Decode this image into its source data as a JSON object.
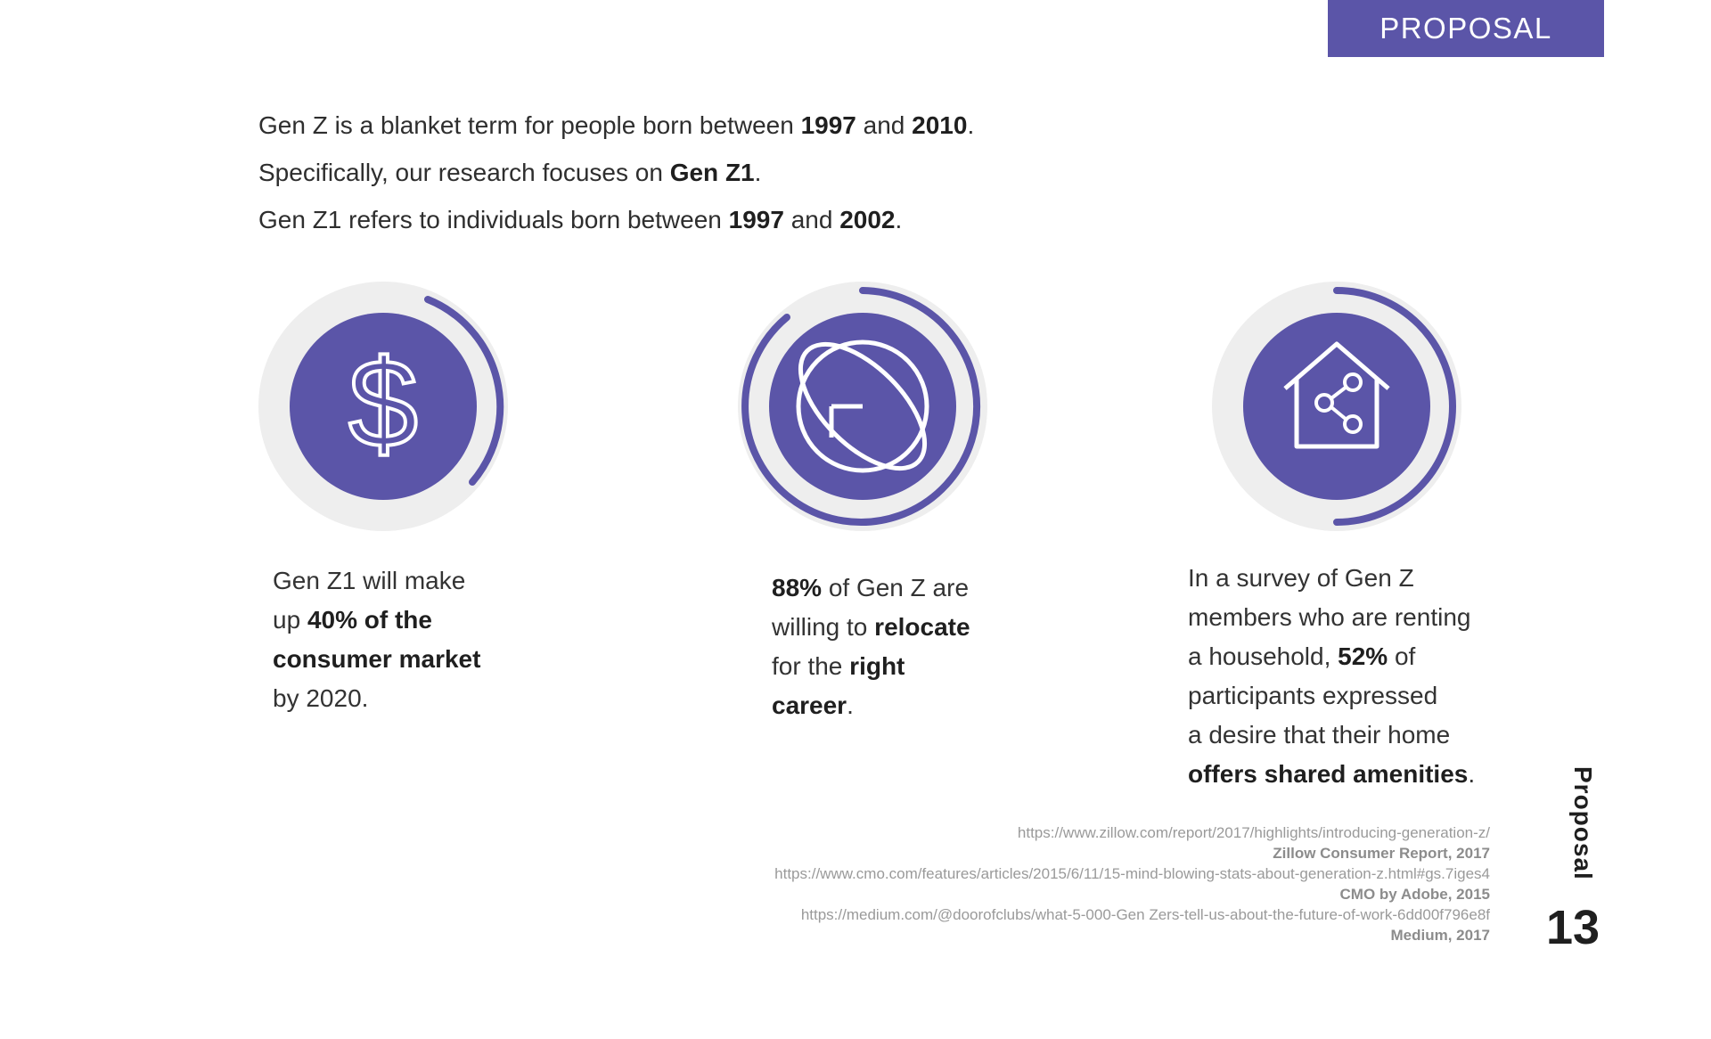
{
  "header": {
    "banner": "PROPOSAL"
  },
  "intro": {
    "line1": {
      "a": "Gen Z is a blanket term for people born between ",
      "b": "1997",
      "c": " and ",
      "d": "2010",
      "e": "."
    },
    "line2": {
      "a": "Specifically, our research focuses on ",
      "b": "Gen Z1",
      "c": "."
    },
    "line3": {
      "a": "Gen Z1 refers to individuals born between ",
      "b": "1997",
      "c": " and ",
      "d": "2002",
      "e": "."
    }
  },
  "stats": [
    {
      "icon": "dollar-icon",
      "lines": [
        {
          "a": "Gen Z1 will make"
        },
        {
          "a": "up ",
          "b": "40% of the"
        },
        {
          "b": "consumer market"
        },
        {
          "a": "by 2020."
        }
      ]
    },
    {
      "icon": "globe-arrow-icon",
      "lines": [
        {
          "b": "88%",
          "a": " of Gen Z are"
        },
        {
          "a": "willing to ",
          "b": "relocate"
        },
        {
          "a": "for the ",
          "b": "right"
        },
        {
          "b": "career",
          "a": "."
        }
      ]
    },
    {
      "icon": "house-share-icon",
      "lines": [
        {
          "a": "In a survey of Gen Z"
        },
        {
          "a": "members who are renting"
        },
        {
          "a": "a household, ",
          "b": "52%",
          "c": " of"
        },
        {
          "a": "participants expressed"
        },
        {
          "a": "a desire that their home"
        },
        {
          "b": "offers shared amenities",
          "a": "."
        }
      ]
    }
  ],
  "sources": [
    {
      "url": "https://www.zillow.com/report/2017/highlights/introducing-generation-z/",
      "name": "Zillow Consumer Report, 2017"
    },
    {
      "url": "https://www.cmo.com/features/articles/2015/6/11/15-mind-blowing-stats-about-generation-z.html#gs.7iges4",
      "name": "CMO by Adobe, 2015"
    },
    {
      "url": "https://medium.com/@doorofclubs/what-5-000-Gen Zers-tell-us-about-the-future-of-work-6dd00f796e8f",
      "name": "Medium, 2017"
    }
  ],
  "footer": {
    "section_label": "Proposal",
    "page_number": "13"
  },
  "colors": {
    "accent": "#5b55a8",
    "ring_bg": "#eeeeee"
  }
}
